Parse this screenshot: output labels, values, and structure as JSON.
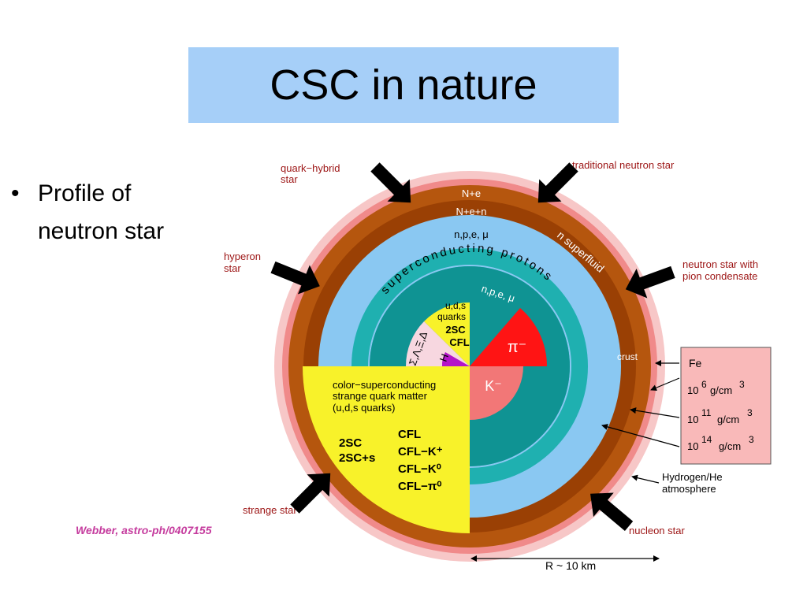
{
  "slide": {
    "title": "CSC in nature",
    "bullet_line1": "Profile of",
    "bullet_line2": "neutron star"
  },
  "diagram": {
    "labels": {
      "quark_hybrid_star_1": "quark−hybrid",
      "quark_hybrid_star_2": "star",
      "traditional_neutron_star": "traditional neutron star",
      "hyperon_star_1": "hyperon",
      "hyperon_star_2": "star",
      "neutron_pion_1": "neutron star with",
      "neutron_pion_2": "pion condensate",
      "strange_star": "strange star",
      "nucleon_star": "nucleon star",
      "crust": "crust",
      "hydrogen_1": "Hydrogen/He",
      "hydrogen_2": "atmosphere",
      "radius": "R ~ 10 km",
      "citation": "Webber, astro-ph/0407155"
    },
    "layers": {
      "n_e": "N+e",
      "n_e_n": "N+e+n",
      "npe_mu_outer": "n,p,e, μ",
      "n_superfluid": "n superfluid",
      "superconducting_protons": "superconducting protons",
      "npe_mu_inner": "n,p,e, μ",
      "uds_quarks_1": "u,d,s",
      "uds_quarks_2": "quarks",
      "twosc": "2SC",
      "cfl": "CFL",
      "hyperons": "Σ,Λ,Ξ,Δ",
      "h_dibaryon": "H",
      "pi_minus": "π⁻",
      "k_minus": "K⁻"
    },
    "quark_matter": {
      "line1": "color−superconducting",
      "line2": "strange quark matter",
      "line3": "(u,d,s quarks)",
      "phase_2sc": "2SC",
      "phase_2scs": "2SC+s",
      "phase_cfl": "CFL",
      "phase_cflk": "CFL−K⁺",
      "phase_cflk0": "CFL−K⁰",
      "phase_cflpi0": "CFL−π⁰"
    },
    "density_box": {
      "fe": "Fe",
      "d1_base": "10",
      "d1_exp": "6",
      "d1_unit": "g/cm",
      "d1_unit_exp": "3",
      "d2_base": "10",
      "d2_exp": "11",
      "d2_unit": "g/cm",
      "d2_unit_exp": "3",
      "d3_base": "10",
      "d3_exp": "14",
      "d3_unit": "g/cm",
      "d3_unit_exp": "3"
    },
    "colors": {
      "title_bg": "#a6cff8",
      "halo": "#f7c7c7",
      "outer_red": "#f08a8a",
      "brown": "#b5560e",
      "brown_dark": "#9a4004",
      "light_blue": "#8ac8f2",
      "teal": "#1fb0b0",
      "teal_dark": "#0f9393",
      "yellow": "#f8f22a",
      "red": "#ff1414",
      "salmon": "#f27777",
      "pink": "#f7d7e0",
      "purple": "#b414c8",
      "label_red": "#9c1414",
      "citation": "#c53c9e",
      "box_fill": "#f9b9b9"
    }
  }
}
